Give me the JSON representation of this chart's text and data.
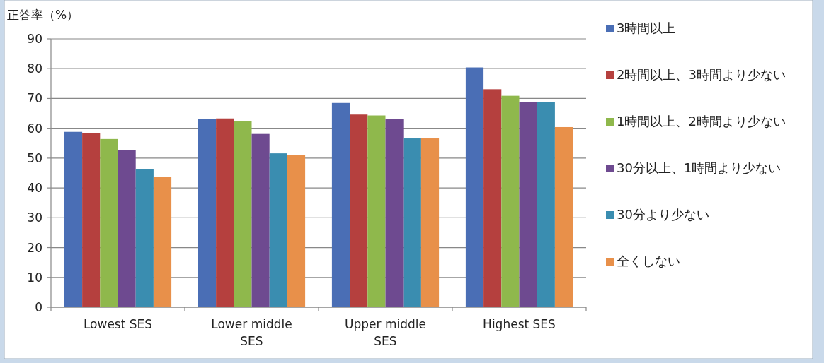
{
  "chart_data": {
    "type": "bar",
    "ylabel": "正答率（%）",
    "categories": [
      "Lowest SES",
      "Lower middle SES",
      "Upper middle SES",
      "Highest SES"
    ],
    "series": [
      {
        "name": "3時間以上",
        "color": "#4a6eb5",
        "values": [
          58.8,
          63.1,
          68.5,
          80.4
        ]
      },
      {
        "name": "2時間以上、3時間より少ない",
        "color": "#b5403e",
        "values": [
          58.4,
          63.3,
          64.6,
          73.1
        ]
      },
      {
        "name": "1時間以上、2時間より少ない",
        "color": "#8fb84c",
        "values": [
          56.4,
          62.5,
          64.3,
          70.9
        ]
      },
      {
        "name": "30分以上、1時間より少ない",
        "color": "#6e4a90",
        "values": [
          52.8,
          58.1,
          63.2,
          68.8
        ]
      },
      {
        "name": "30分より少ない",
        "color": "#3a8db0",
        "values": [
          46.2,
          51.6,
          56.6,
          68.7
        ]
      },
      {
        "name": "全くしない",
        "color": "#e8904a",
        "values": [
          43.7,
          51.1,
          56.6,
          60.4
        ]
      }
    ],
    "ylim": [
      0,
      90
    ],
    "yticks": [
      0,
      10,
      20,
      30,
      40,
      50,
      60,
      70,
      80,
      90
    ],
    "grid": "y",
    "legend": "right"
  }
}
